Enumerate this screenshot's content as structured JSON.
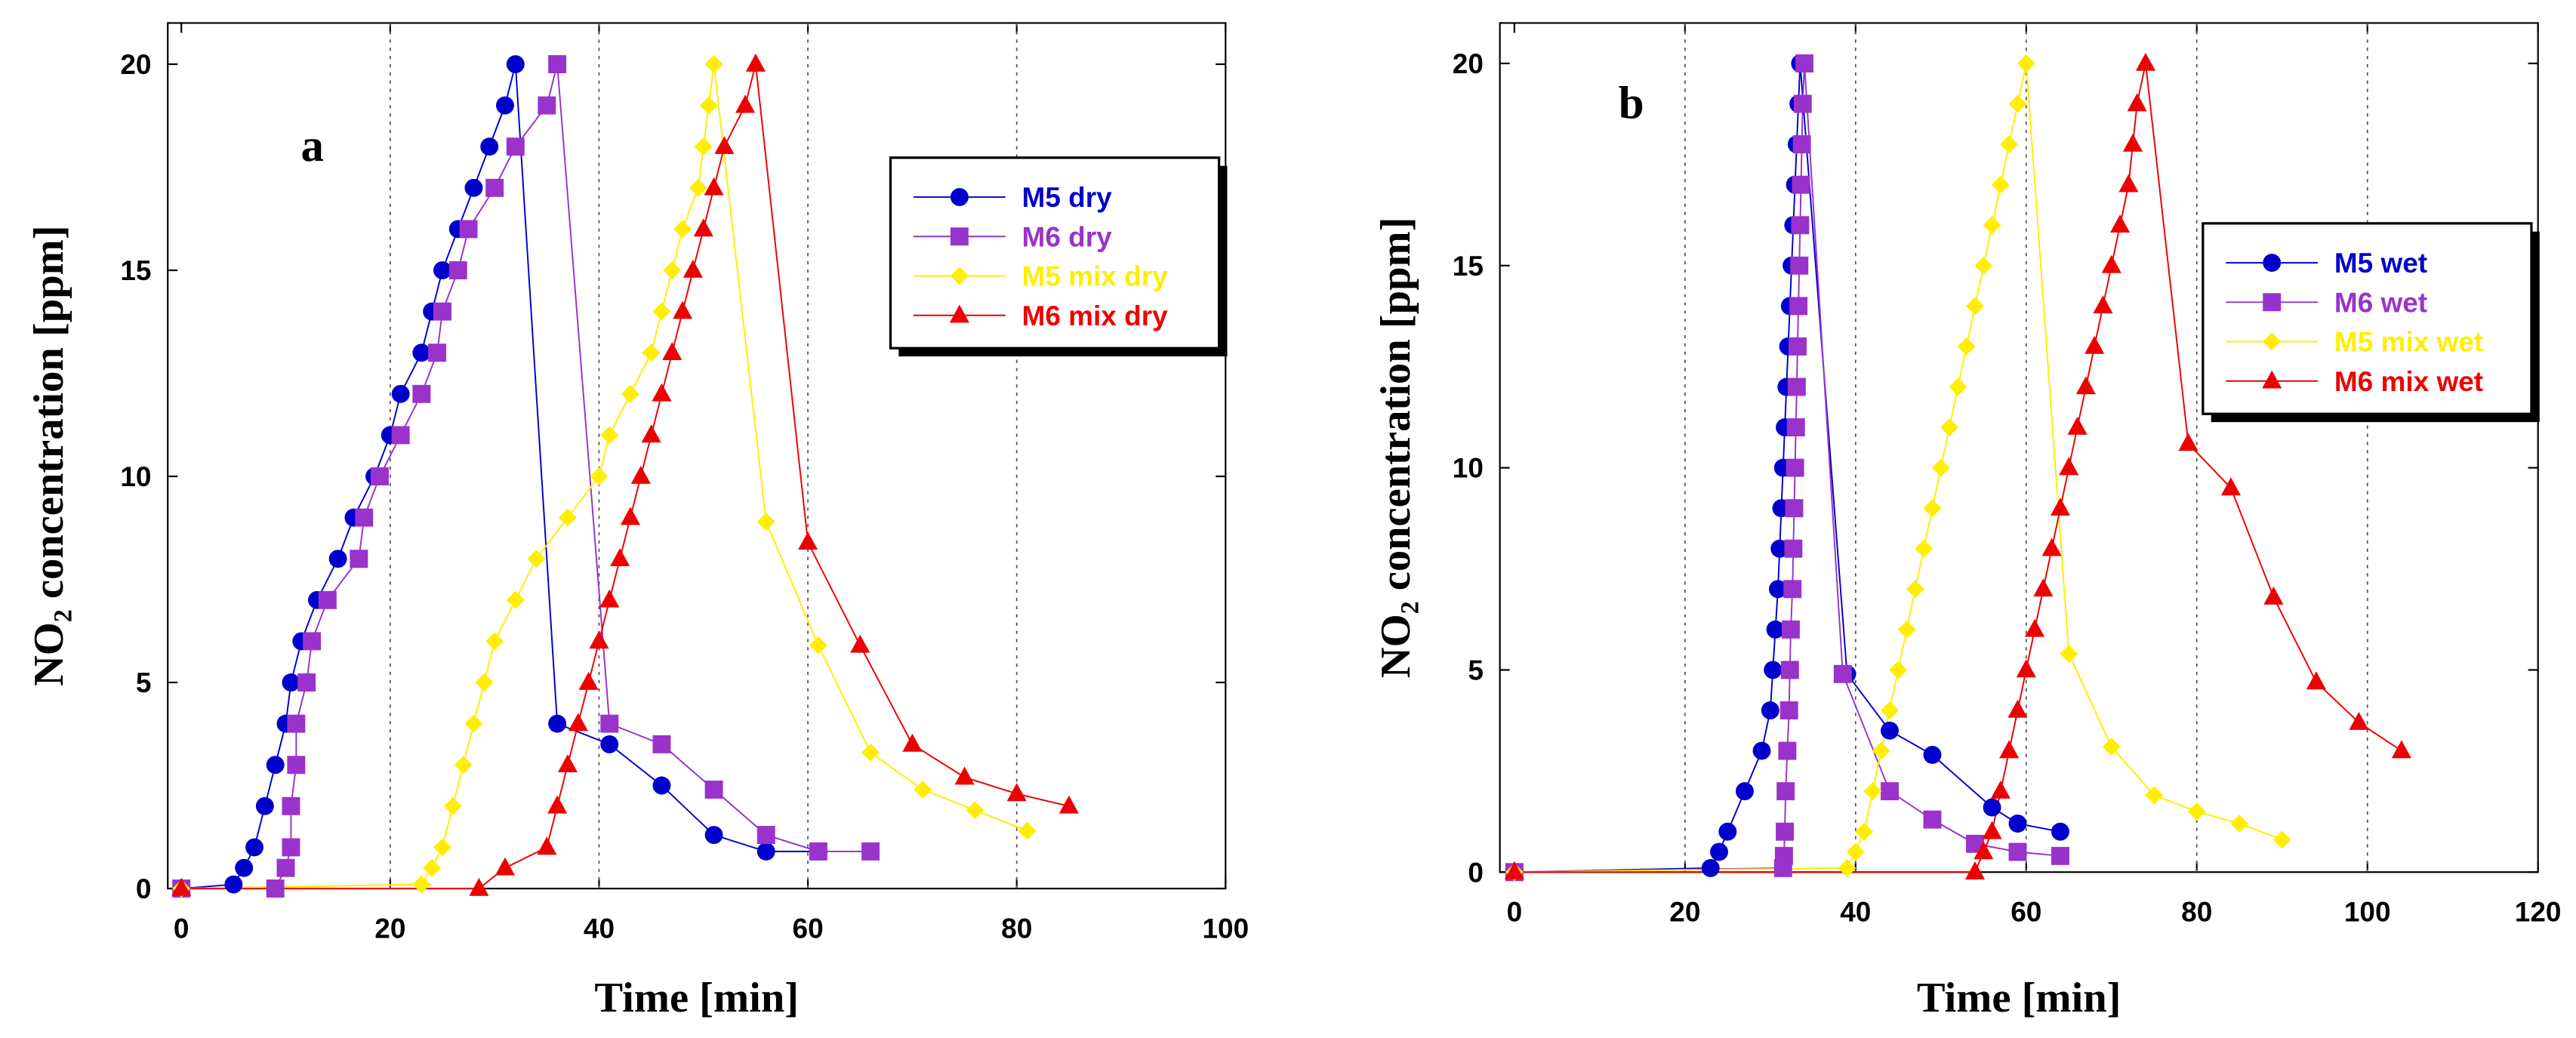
{
  "chart_data": [
    {
      "type": "line",
      "label": "a",
      "x_label": "Time [min]",
      "y_label": "NO₂ concentration [ppm]",
      "xlim": [
        -1.3,
        100
      ],
      "ylim": [
        0,
        21
      ],
      "xticks": [
        0,
        20,
        40,
        60,
        80,
        100
      ],
      "yticks": [
        0,
        5,
        10,
        15,
        20
      ],
      "grid": "x",
      "legend": "upper right",
      "series": [
        {
          "name": "M5 dry",
          "color": "#0000cc",
          "marker": "circle",
          "x": [
            0,
            5,
            6,
            7,
            8,
            9,
            10,
            10.5,
            11.5,
            13,
            15,
            16.5,
            18.5,
            20,
            21,
            23,
            24,
            25,
            26.5,
            28,
            29.5,
            31,
            32,
            36,
            41,
            46,
            51,
            56,
            61
          ],
          "values": [
            0,
            0.1,
            0.5,
            1,
            2,
            3,
            4,
            5,
            6,
            7,
            8,
            9,
            10,
            11,
            12,
            13,
            14,
            15,
            16,
            17,
            18,
            19,
            20,
            4,
            3.5,
            2.5,
            1.3,
            0.9,
            0.9
          ]
        },
        {
          "name": "M6 dry",
          "color": "#9933cc",
          "marker": "square",
          "x": [
            0,
            9,
            10,
            10.5,
            10.5,
            11,
            11,
            12,
            12.5,
            14,
            17,
            17.5,
            19,
            21,
            23,
            24.5,
            25,
            26.5,
            27.5,
            30,
            32,
            35,
            36,
            41,
            46,
            51,
            56,
            61,
            66
          ],
          "values": [
            0,
            0,
            0.5,
            1,
            2,
            3,
            4,
            5,
            6,
            7,
            8,
            9,
            10,
            11,
            12,
            13,
            14,
            15,
            16,
            17,
            18,
            19,
            20,
            4,
            3.5,
            2.4,
            1.3,
            0.9,
            0.9
          ]
        },
        {
          "name": "M5 mix dry",
          "color": "#ffee00",
          "marker": "diamond",
          "x": [
            0,
            23,
            24,
            25,
            26,
            27,
            28,
            29,
            30,
            32,
            34,
            37,
            40,
            41,
            43,
            45,
            46,
            47,
            48,
            49.5,
            50,
            50.5,
            51,
            56,
            61,
            66,
            71,
            76,
            81
          ],
          "values": [
            0,
            0.1,
            0.5,
            1,
            2,
            3,
            4,
            5,
            6,
            7,
            8,
            9,
            10,
            11,
            12,
            13,
            14,
            15,
            16,
            17,
            18,
            19,
            20,
            8.9,
            5.9,
            3.3,
            2.4,
            1.9,
            1.4
          ]
        },
        {
          "name": "M6 mix dry",
          "color": "#ee0000",
          "marker": "triangle",
          "x": [
            0,
            28.5,
            31,
            35,
            36,
            37,
            38,
            39,
            40,
            41,
            42,
            43,
            44,
            45,
            46,
            47,
            48,
            49,
            50,
            51,
            52,
            54,
            55,
            60,
            65,
            70,
            75,
            80,
            85
          ],
          "values": [
            0,
            0,
            0.5,
            1,
            2,
            3,
            4,
            5,
            6,
            7,
            8,
            9,
            10,
            11,
            12,
            13,
            14,
            15,
            16,
            17,
            18,
            19,
            20,
            8.4,
            5.9,
            3.5,
            2.7,
            2.3,
            2
          ]
        }
      ]
    },
    {
      "type": "line",
      "label": "b",
      "x_label": "Time [min]",
      "y_label": "NO₂ concentration [ppm]",
      "xlim": [
        -1.7,
        120
      ],
      "ylim": [
        0,
        21
      ],
      "xticks": [
        0,
        20,
        40,
        60,
        80,
        100,
        120
      ],
      "yticks": [
        0,
        5,
        10,
        15,
        20
      ],
      "grid": "x",
      "legend": "right",
      "series": [
        {
          "name": "M5 wet",
          "color": "#0000cc",
          "marker": "circle",
          "x": [
            0,
            23,
            24,
            25,
            27,
            29,
            30,
            30.3,
            30.6,
            30.9,
            31.1,
            31.3,
            31.5,
            31.7,
            31.9,
            32.1,
            32.3,
            32.5,
            32.7,
            32.9,
            33.1,
            33.3,
            33.5,
            39,
            44,
            49,
            56,
            59,
            64
          ],
          "values": [
            0,
            0.1,
            0.5,
            1,
            2,
            3,
            4,
            5,
            6,
            7,
            8,
            9,
            10,
            11,
            12,
            13,
            14,
            15,
            16,
            17,
            18,
            19,
            20,
            4.9,
            3.5,
            2.9,
            1.6,
            1.2,
            1
          ]
        },
        {
          "name": "M6 wet",
          "color": "#9933cc",
          "marker": "square",
          "x": [
            0,
            31.5,
            31.6,
            31.7,
            31.8,
            32,
            32.2,
            32.3,
            32.4,
            32.6,
            32.7,
            32.8,
            32.9,
            33,
            33.1,
            33.2,
            33.3,
            33.4,
            33.5,
            33.6,
            33.7,
            33.8,
            34,
            38.5,
            44,
            49,
            54,
            59,
            64
          ],
          "values": [
            0,
            0.1,
            0.4,
            1,
            2,
            3,
            4,
            5,
            6,
            7,
            8,
            9,
            10,
            11,
            12,
            13,
            14,
            15,
            16,
            17,
            18,
            19,
            20,
            4.9,
            2,
            1.3,
            0.7,
            0.5,
            0.4
          ]
        },
        {
          "name": "M5 mix wet",
          "color": "#ffee00",
          "marker": "diamond",
          "x": [
            0,
            39,
            40,
            41,
            42,
            43,
            44,
            45,
            46,
            47,
            48,
            49,
            50,
            51,
            52,
            53,
            54,
            55,
            56,
            57,
            58,
            59,
            60,
            65,
            70,
            75,
            80,
            85,
            90
          ],
          "values": [
            0,
            0.1,
            0.5,
            1,
            2,
            3,
            4,
            5,
            6,
            7,
            8,
            9,
            10,
            11,
            12,
            13,
            14,
            15,
            16,
            17,
            18,
            19,
            20,
            5.4,
            3.1,
            1.9,
            1.5,
            1.2,
            0.8
          ]
        },
        {
          "name": "M6 mix wet",
          "color": "#ee0000",
          "marker": "triangle",
          "x": [
            0,
            54,
            55,
            56,
            57,
            58,
            59,
            60,
            61,
            62,
            63,
            64,
            65,
            66,
            67,
            68,
            69,
            70,
            71,
            72,
            72.5,
            73,
            74,
            79,
            84,
            89,
            94,
            99,
            104
          ],
          "values": [
            0,
            0,
            0.5,
            1,
            2,
            3,
            4,
            5,
            6,
            7,
            8,
            9,
            10,
            11,
            12,
            13,
            14,
            15,
            16,
            17,
            18,
            19,
            20,
            10.6,
            9.5,
            6.8,
            4.7,
            3.7,
            3
          ]
        }
      ]
    }
  ]
}
